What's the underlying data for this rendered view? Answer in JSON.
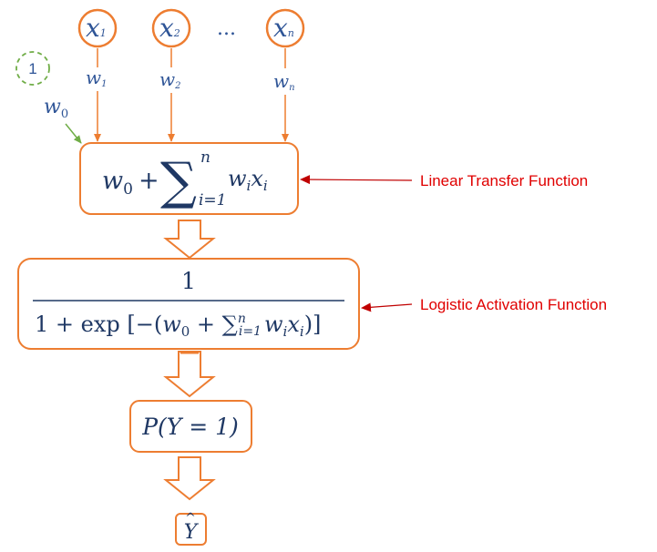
{
  "inputs": [
    {
      "symbol": "x",
      "subscript": "1",
      "weight": "w",
      "weight_sub": "1"
    },
    {
      "symbol": "x",
      "subscript": "2",
      "weight": "w",
      "weight_sub": "2"
    },
    {
      "symbol": "x",
      "subscript": "n",
      "weight": "w",
      "weight_sub": "n"
    }
  ],
  "ellipsis": "...",
  "bias": {
    "value": "1",
    "weight": "w",
    "weight_sub": "0"
  },
  "linear": {
    "w": "w",
    "w_sub": "0",
    "plus": "+",
    "sigma": "∑",
    "sum_top": "n",
    "sum_bottom": "i=1",
    "term_w": "w",
    "term_w_sub": "i",
    "term_x": "x",
    "term_x_sub": "i"
  },
  "logistic": {
    "numerator": "1",
    "den_a": "1 + exp [−(",
    "den_w": "w",
    "den_w_sub": "0",
    "den_plus": " + ",
    "den_sigma": "∑",
    "den_sum_top": "n",
    "den_sum_bottom": "i=1",
    "den_term_w": "w",
    "den_term_w_sub": "i",
    "den_term_x": "x",
    "den_term_x_sub": "i",
    "den_close": ")]"
  },
  "probability": "P(Y = 1)",
  "output": {
    "symbol": "Y",
    "hat": "^"
  },
  "labels": {
    "linear_transfer": "Linear Transfer Function",
    "logistic_activation": "Logistic Activation Function"
  },
  "colors": {
    "orange": "#ED7D31",
    "blue": "#2F5597",
    "green": "#70AD47",
    "red": "#E00000",
    "dark": "#1F1F1F"
  }
}
